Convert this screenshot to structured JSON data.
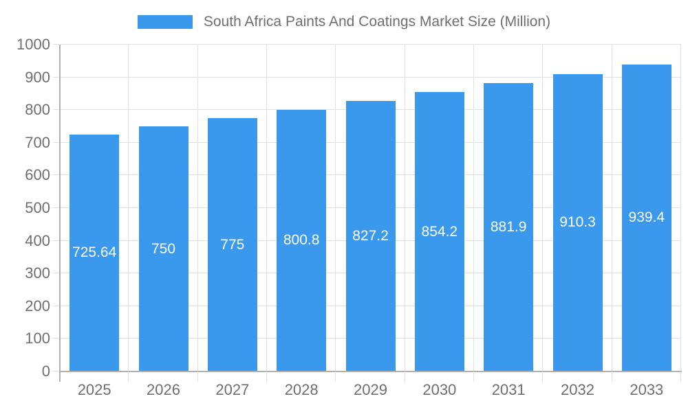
{
  "chart_data": {
    "type": "bar",
    "title": "South Africa Paints And Coatings Market Size (Million)",
    "categories": [
      "2025",
      "2026",
      "2027",
      "2028",
      "2029",
      "2030",
      "2031",
      "2032",
      "2033"
    ],
    "values": [
      725.64,
      750,
      775,
      800.8,
      827.2,
      854.2,
      881.9,
      910.3,
      939.4
    ],
    "value_labels": [
      "725.64",
      "750",
      "775",
      "800.8",
      "827.2",
      "854.2",
      "881.9",
      "910.3",
      "939.4"
    ],
    "xlabel": "",
    "ylabel": "",
    "ylim": [
      0,
      1000
    ],
    "y_tick_step": 100,
    "y_tick_labels": [
      "0",
      "100",
      "200",
      "300",
      "400",
      "500",
      "600",
      "700",
      "800",
      "900",
      "1000"
    ],
    "grid": true,
    "legend_position": "top-center",
    "colors": {
      "bar": "#3a99ec",
      "bar_value_text": "#ffffff",
      "axis_text": "#6e6e6e",
      "title_text": "#6e6e6e",
      "gridline": "#e0e0e0",
      "axis_line": "#b0b0b0",
      "background": "#ffffff"
    }
  }
}
